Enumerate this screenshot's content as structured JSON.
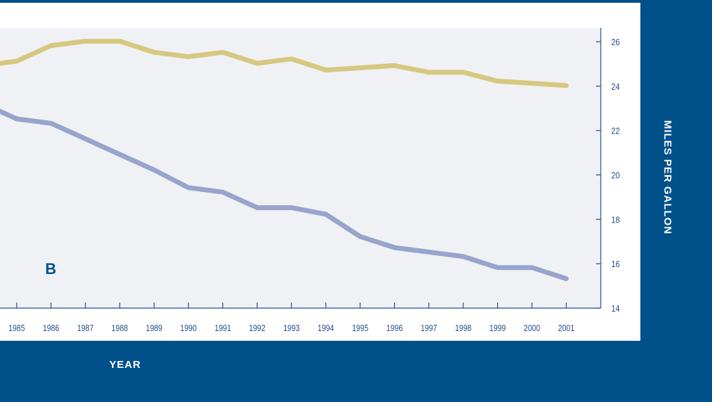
{
  "panel_label": "B",
  "colors": {
    "background": "#00508a",
    "plot_area": "#f0f1f5",
    "axis": "#1e4f86",
    "series_upper": "#d6c880",
    "series_lower": "#97a4cb"
  },
  "chart_data": {
    "type": "line",
    "xlabel": "YEAR",
    "ylabel": "MILES PER GALLON",
    "x": [
      1985,
      1986,
      1987,
      1988,
      1989,
      1990,
      1991,
      1992,
      1993,
      1994,
      1995,
      1996,
      1997,
      1998,
      1999,
      2000,
      2001
    ],
    "x_ticks": [
      "1985",
      "1986",
      "1987",
      "1988",
      "1989",
      "1990",
      "1991",
      "1992",
      "1993",
      "1994",
      "1995",
      "1996",
      "1997",
      "1998",
      "1999",
      "2000",
      "2001"
    ],
    "ylim": [
      14,
      26
    ],
    "y_ticks": [
      "14",
      "16",
      "18",
      "20",
      "22",
      "24",
      "26"
    ],
    "y_axis_side": "right",
    "grid": false,
    "series": [
      {
        "color": "#d6c880",
        "values": [
          25.0,
          25.7,
          25.9,
          25.9,
          25.4,
          25.2,
          25.4,
          24.9,
          25.1,
          24.6,
          24.7,
          24.8,
          24.5,
          24.5,
          24.1,
          24.0,
          23.9
        ],
        "leading_value": 24.8
      },
      {
        "color": "#97a4cb",
        "values": [
          22.4,
          22.2,
          21.5,
          20.8,
          20.1,
          19.3,
          19.1,
          18.4,
          18.4,
          18.1,
          17.1,
          16.6,
          16.4,
          16.2,
          15.7,
          15.7,
          15.2
        ],
        "leading_value": 23.1
      }
    ]
  }
}
